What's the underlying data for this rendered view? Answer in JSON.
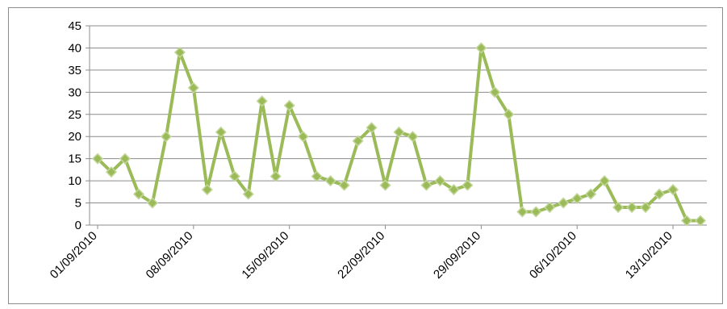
{
  "chart_data": {
    "type": "line",
    "title": "",
    "xlabel": "",
    "ylabel": "",
    "ylim": [
      0,
      45
    ],
    "yticks": [
      0,
      5,
      10,
      15,
      20,
      25,
      30,
      35,
      40,
      45
    ],
    "grid": "horizontal",
    "legend": "none",
    "x_start": "01/09/2010",
    "x_tick_labels": [
      "01/09/2010",
      "08/09/2010",
      "15/09/2010",
      "22/09/2010",
      "29/09/2010",
      "06/10/2010",
      "13/10/2010"
    ],
    "series": [
      {
        "color": "#9bbb59",
        "marker_color": "#9bbb59",
        "values": [
          15,
          12,
          15,
          7,
          5,
          20,
          39,
          31,
          8,
          21,
          11,
          7,
          28,
          11,
          27,
          20,
          11,
          10,
          9,
          19,
          22,
          9,
          21,
          20,
          9,
          10,
          8,
          9,
          40,
          30,
          25,
          3,
          3,
          4,
          5,
          6,
          7,
          10,
          4,
          4,
          4,
          7,
          8,
          1,
          1
        ]
      }
    ]
  }
}
